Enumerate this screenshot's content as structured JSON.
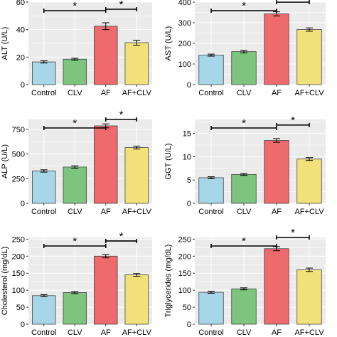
{
  "colors": {
    "panel_bg": "#ebebeb",
    "grid": "#ffffff",
    "text": "#000000",
    "bars": [
      "#a6d6e7",
      "#7dc47f",
      "#ee6a6c",
      "#f2e17a"
    ],
    "bar_stroke": "#444444"
  },
  "chart_data": [
    {
      "type": "bar",
      "ylabel": "ALT (U/L)",
      "categories": [
        "Control",
        "CLV",
        "AF",
        "AF+CLV"
      ],
      "values": [
        16.5,
        18.5,
        42.5,
        30.5
      ],
      "errors": [
        0.8,
        0.7,
        2.5,
        1.8
      ],
      "ylim": [
        0,
        60
      ],
      "yticks": [
        0,
        20,
        40,
        60
      ],
      "grid": true,
      "significance": [
        {
          "from": "Control",
          "to": "AF",
          "label": "*"
        },
        {
          "from": "AF",
          "to": "AF+CLV",
          "label": "*"
        }
      ]
    },
    {
      "type": "bar",
      "ylabel": "AST (U/L)",
      "categories": [
        "Control",
        "CLV",
        "AF",
        "AF+CLV"
      ],
      "values": [
        143,
        160,
        343,
        267
      ],
      "errors": [
        5,
        6,
        10,
        8
      ],
      "ylim": [
        0,
        400
      ],
      "yticks": [
        0,
        100,
        200,
        300,
        400
      ],
      "grid": true,
      "significance": [
        {
          "from": "Control",
          "to": "AF",
          "label": "*"
        },
        {
          "from": "AF",
          "to": "AF+CLV",
          "label": "*"
        }
      ]
    },
    {
      "type": "bar",
      "ylabel": "ALP (U/L)",
      "categories": [
        "Control",
        "CLV",
        "AF",
        "AF+CLV"
      ],
      "values": [
        328,
        368,
        785,
        565
      ],
      "errors": [
        12,
        12,
        20,
        15
      ],
      "ylim": [
        0,
        850
      ],
      "yticks": [
        0,
        250,
        500,
        750
      ],
      "grid": true,
      "significance": [
        {
          "from": "Control",
          "to": "AF",
          "label": "*"
        },
        {
          "from": "AF",
          "to": "AF+CLV",
          "label": "*"
        }
      ]
    },
    {
      "type": "bar",
      "ylabel": "GGT (U/L)",
      "categories": [
        "Control",
        "CLV",
        "AF",
        "AF+CLV"
      ],
      "values": [
        5.5,
        6.2,
        13.5,
        9.5
      ],
      "errors": [
        0.2,
        0.2,
        0.4,
        0.3
      ],
      "ylim": [
        0,
        18
      ],
      "yticks": [
        0,
        5,
        10,
        15
      ],
      "grid": true,
      "significance": [
        {
          "from": "Control",
          "to": "AF",
          "label": "*"
        },
        {
          "from": "AF",
          "to": "AF+CLV",
          "label": "*"
        }
      ]
    },
    {
      "type": "bar",
      "ylabel": "Cholesterol (mg/dL)",
      "categories": [
        "Control",
        "CLV",
        "AF",
        "AF+CLV"
      ],
      "values": [
        84,
        93,
        200,
        145
      ],
      "errors": [
        3,
        3,
        5,
        4
      ],
      "ylim": [
        0,
        255
      ],
      "yticks": [
        0,
        50,
        100,
        150,
        200,
        250
      ],
      "grid": true,
      "significance": [
        {
          "from": "Control",
          "to": "AF",
          "label": "*"
        },
        {
          "from": "AF",
          "to": "AF+CLV",
          "label": "*"
        }
      ]
    },
    {
      "type": "bar",
      "ylabel": "Triglycerides (mg/dL)",
      "categories": [
        "Control",
        "CLV",
        "AF",
        "AF+CLV"
      ],
      "values": [
        94,
        104,
        222,
        160
      ],
      "errors": [
        3,
        3,
        6,
        5
      ],
      "ylim": [
        0,
        255
      ],
      "yticks": [
        0,
        50,
        100,
        150,
        200,
        250
      ],
      "grid": true,
      "significance": [
        {
          "from": "Control",
          "to": "AF",
          "label": "*"
        },
        {
          "from": "AF",
          "to": "AF+CLV",
          "label": "*"
        }
      ]
    }
  ]
}
